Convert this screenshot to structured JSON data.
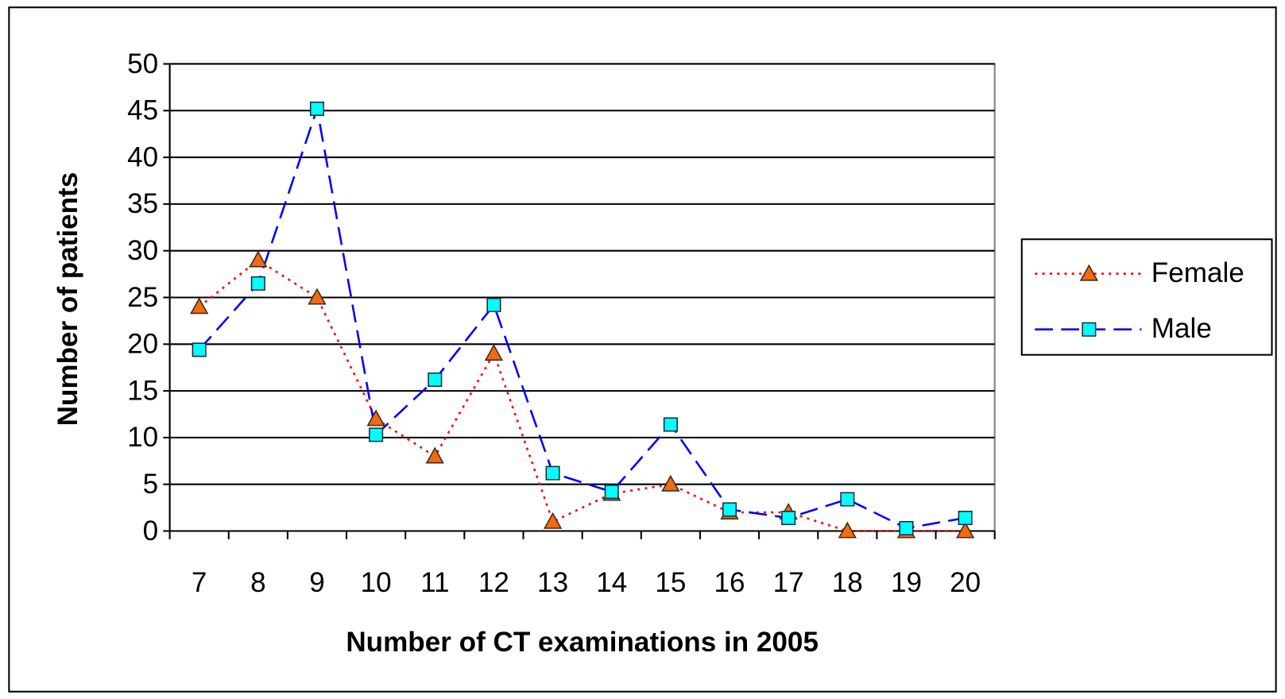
{
  "chart_data": {
    "type": "line",
    "xlabel": "Number of CT examinations in 2005",
    "ylabel": "Number of patients",
    "categories": [
      7,
      8,
      9,
      10,
      11,
      12,
      13,
      14,
      15,
      16,
      17,
      18,
      19,
      20
    ],
    "series": [
      {
        "name": "Female",
        "color": "#ff0000",
        "marker": "triangle",
        "marker_color": "#f26b10",
        "line_style": "dotted",
        "values": [
          24,
          29,
          25,
          12,
          8,
          19,
          1,
          4,
          5,
          2,
          2,
          0,
          0,
          0
        ]
      },
      {
        "name": "Male",
        "color": "#0000ff",
        "marker": "square",
        "marker_color": "#00ffff",
        "line_style": "dashed",
        "values": [
          19.4,
          26.5,
          45.2,
          10.3,
          16.2,
          24.2,
          6.2,
          4.2,
          11.4,
          2.3,
          1.4,
          3.4,
          0.3,
          1.4
        ]
      }
    ],
    "ylim": [
      0,
      50
    ],
    "yticks": [
      0,
      5,
      10,
      15,
      20,
      25,
      30,
      35,
      40,
      45,
      50
    ],
    "grid": true,
    "legend": "right"
  }
}
